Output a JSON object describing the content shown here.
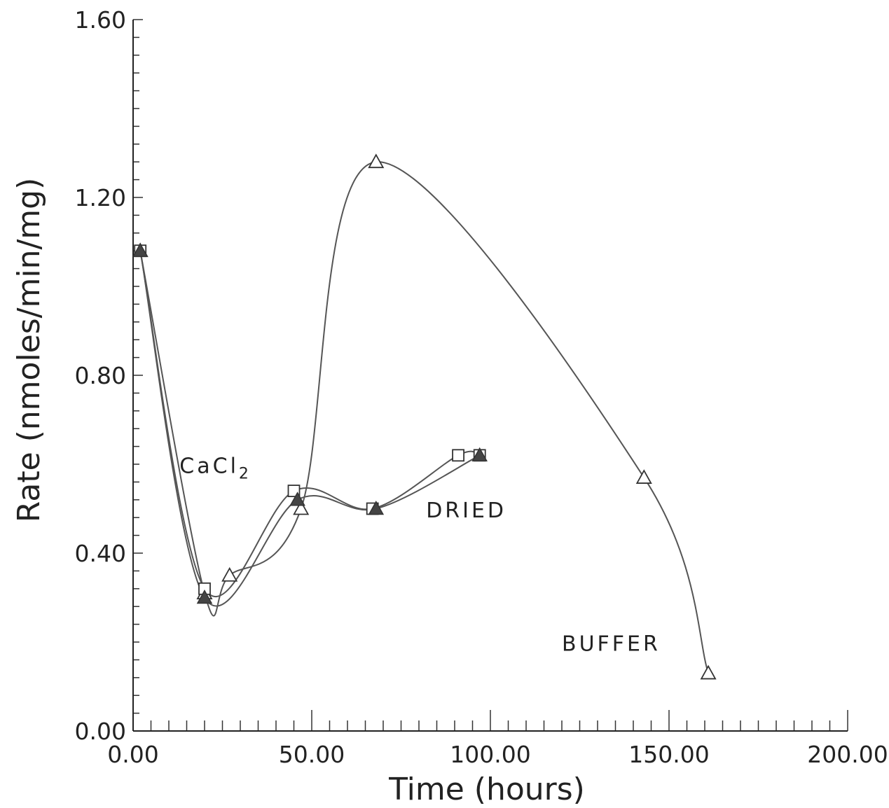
{
  "chart_data": {
    "type": "line",
    "xlabel": "Time (hours)",
    "ylabel": "Rate (nmoles/min/mg)",
    "xlim": [
      0,
      200
    ],
    "ylim": [
      0,
      1.6
    ],
    "x_ticks": [
      "0.00",
      "50.00",
      "100.00",
      "150.00",
      "200.00"
    ],
    "y_ticks": [
      "0.00",
      "0.40",
      "0.80",
      "1.20",
      "1.60"
    ],
    "grid": false,
    "annotations": [
      {
        "label": "CaCl",
        "subscript": "2",
        "x": 13,
        "y": 0.58
      },
      {
        "label": "DRIED",
        "x": 82,
        "y": 0.48
      },
      {
        "label": "BUFFER",
        "x": 120,
        "y": 0.18
      }
    ],
    "series": [
      {
        "marker": "triangle-open",
        "color": "#555555",
        "x": [
          2,
          20,
          27,
          47,
          68,
          143,
          161
        ],
        "y": [
          1.08,
          0.31,
          0.35,
          0.5,
          1.28,
          0.57,
          0.13
        ]
      },
      {
        "marker": "square-open",
        "color": "#555555",
        "x": [
          2,
          20,
          45,
          67,
          91,
          97
        ],
        "y": [
          1.08,
          0.32,
          0.54,
          0.5,
          0.62,
          0.62
        ]
      },
      {
        "marker": "triangle-filled",
        "color": "#555555",
        "x": [
          2,
          20,
          46,
          68,
          97
        ],
        "y": [
          1.08,
          0.3,
          0.52,
          0.5,
          0.62
        ]
      }
    ]
  }
}
